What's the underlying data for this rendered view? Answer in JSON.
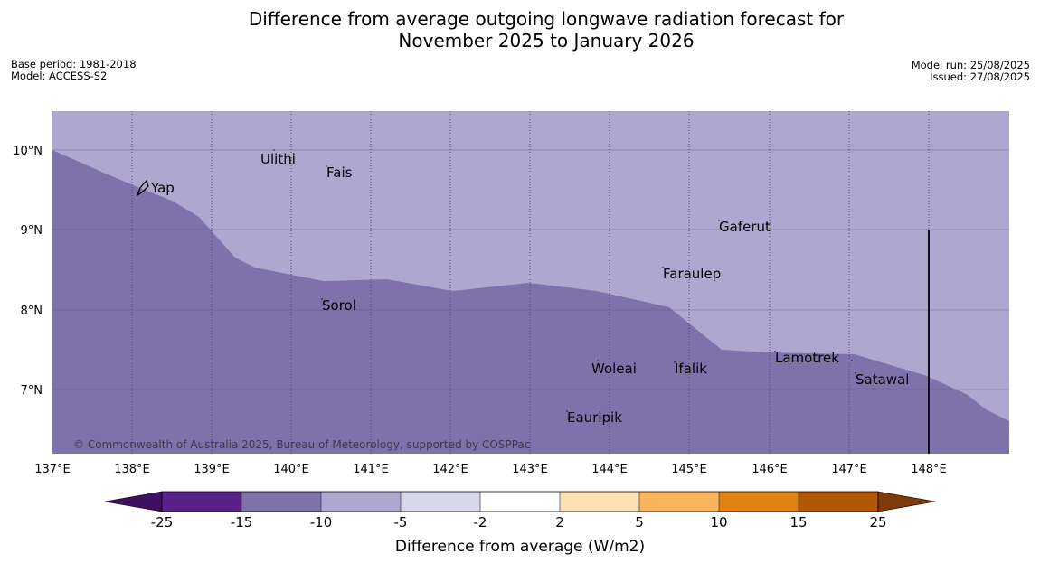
{
  "title_line1": "Difference from average outgoing longwave radiation forecast for",
  "title_line2": "November 2025 to January 2026",
  "base_period": "Base period: 1981-2018",
  "model": "Model: ACCESS-S2",
  "model_run": "Model run: 25/08/2025",
  "issued": "Issued: 27/08/2025",
  "copyright": "© Commonwealth of Australia 2025, Bureau of Meteorology, supported by COSPPac",
  "lat_labels": [
    "10°N",
    "9°N",
    "8°N",
    "7°N"
  ],
  "lon_labels": [
    "137°E",
    "138°E",
    "139°E",
    "140°E",
    "141°E",
    "142°E",
    "143°E",
    "144°E",
    "145°E",
    "146°E",
    "147°E",
    "148°E"
  ],
  "places": [
    "Ulithi",
    "Fais",
    "Yap",
    "Gaferut",
    "Faraulep",
    "Sorol",
    "Lamotrek",
    "Woleai",
    "Ifalik",
    "Satawal",
    "Eauripik"
  ],
  "colorbar": {
    "label": "Difference from average (W/m2)",
    "ticks": [
      "-25",
      "-15",
      "-10",
      "-5",
      "-2",
      "2",
      "5",
      "10",
      "15",
      "25"
    ],
    "colors": [
      "#3f0f62",
      "#59218a",
      "#7f72ab",
      "#aea8d1",
      "#d7d8ea",
      "#ffffff",
      "#fde0b4",
      "#fbb55e",
      "#e08214",
      "#b35806",
      "#7f3b08"
    ]
  },
  "chart_data": {
    "type": "map",
    "region": {
      "lon": [
        137,
        149
      ],
      "lat": [
        6.2,
        10.5
      ]
    },
    "fill_levels": [
      {
        "range": "-15 to -10",
        "color": "#7f72ab",
        "area": "south of boundary"
      },
      {
        "range": "-10 to -5",
        "color": "#aea8d1",
        "area": "north of boundary"
      }
    ],
    "boundary": [
      {
        "lon": 137.0,
        "lat": 10.0
      },
      {
        "lon": 137.6,
        "lat": 9.7
      },
      {
        "lon": 138.4,
        "lat": 9.4
      },
      {
        "lon": 138.9,
        "lat": 9.15
      },
      {
        "lon": 139.4,
        "lat": 8.6
      },
      {
        "lon": 139.6,
        "lat": 8.5
      },
      {
        "lon": 140.0,
        "lat": 8.45
      },
      {
        "lon": 140.4,
        "lat": 8.37
      },
      {
        "lon": 141.2,
        "lat": 8.4
      },
      {
        "lon": 142.0,
        "lat": 8.25
      },
      {
        "lon": 142.9,
        "lat": 8.33
      },
      {
        "lon": 143.7,
        "lat": 8.25
      },
      {
        "lon": 144.7,
        "lat": 8.05
      },
      {
        "lon": 145.4,
        "lat": 7.5
      },
      {
        "lon": 146.0,
        "lat": 7.47
      },
      {
        "lon": 147.0,
        "lat": 7.45
      },
      {
        "lon": 148.0,
        "lat": 7.2
      },
      {
        "lon": 148.5,
        "lat": 6.95
      },
      {
        "lon": 149.0,
        "lat": 6.65
      }
    ]
  }
}
